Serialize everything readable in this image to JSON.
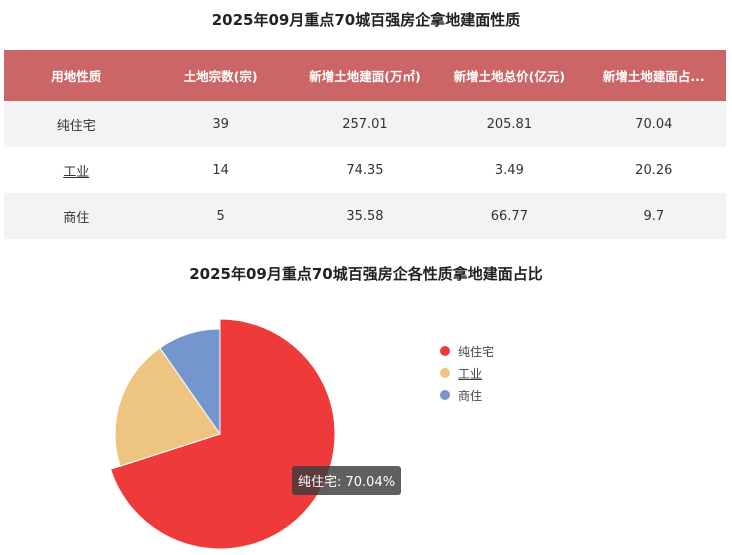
{
  "table": {
    "title": "2025年09月重点70城百强房企拿地建面性质",
    "headers": [
      "用地性质",
      "土地宗数(宗)",
      "新增土地建面(万㎡)",
      "新增土地总价(亿元)",
      "新增土地建面占..."
    ],
    "rows": [
      [
        "纯住宅",
        "39",
        "257.01",
        "205.81",
        "70.04"
      ],
      [
        "工业",
        "14",
        "74.35",
        "3.49",
        "20.26"
      ],
      [
        "商住",
        "5",
        "35.58",
        "66.77",
        "9.7"
      ]
    ]
  },
  "chart_data": {
    "type": "pie",
    "title": "2025年09月重点70城百强房企各性质拿地建面占比",
    "categories": [
      "纯住宅",
      "工业",
      "商住"
    ],
    "values": [
      70.04,
      20.26,
      9.7
    ],
    "colors": [
      "#ef3a3c",
      "#eec481",
      "#7396cc"
    ],
    "legend_position": "right"
  },
  "tooltip": {
    "text": "纯住宅: 70.04%"
  }
}
